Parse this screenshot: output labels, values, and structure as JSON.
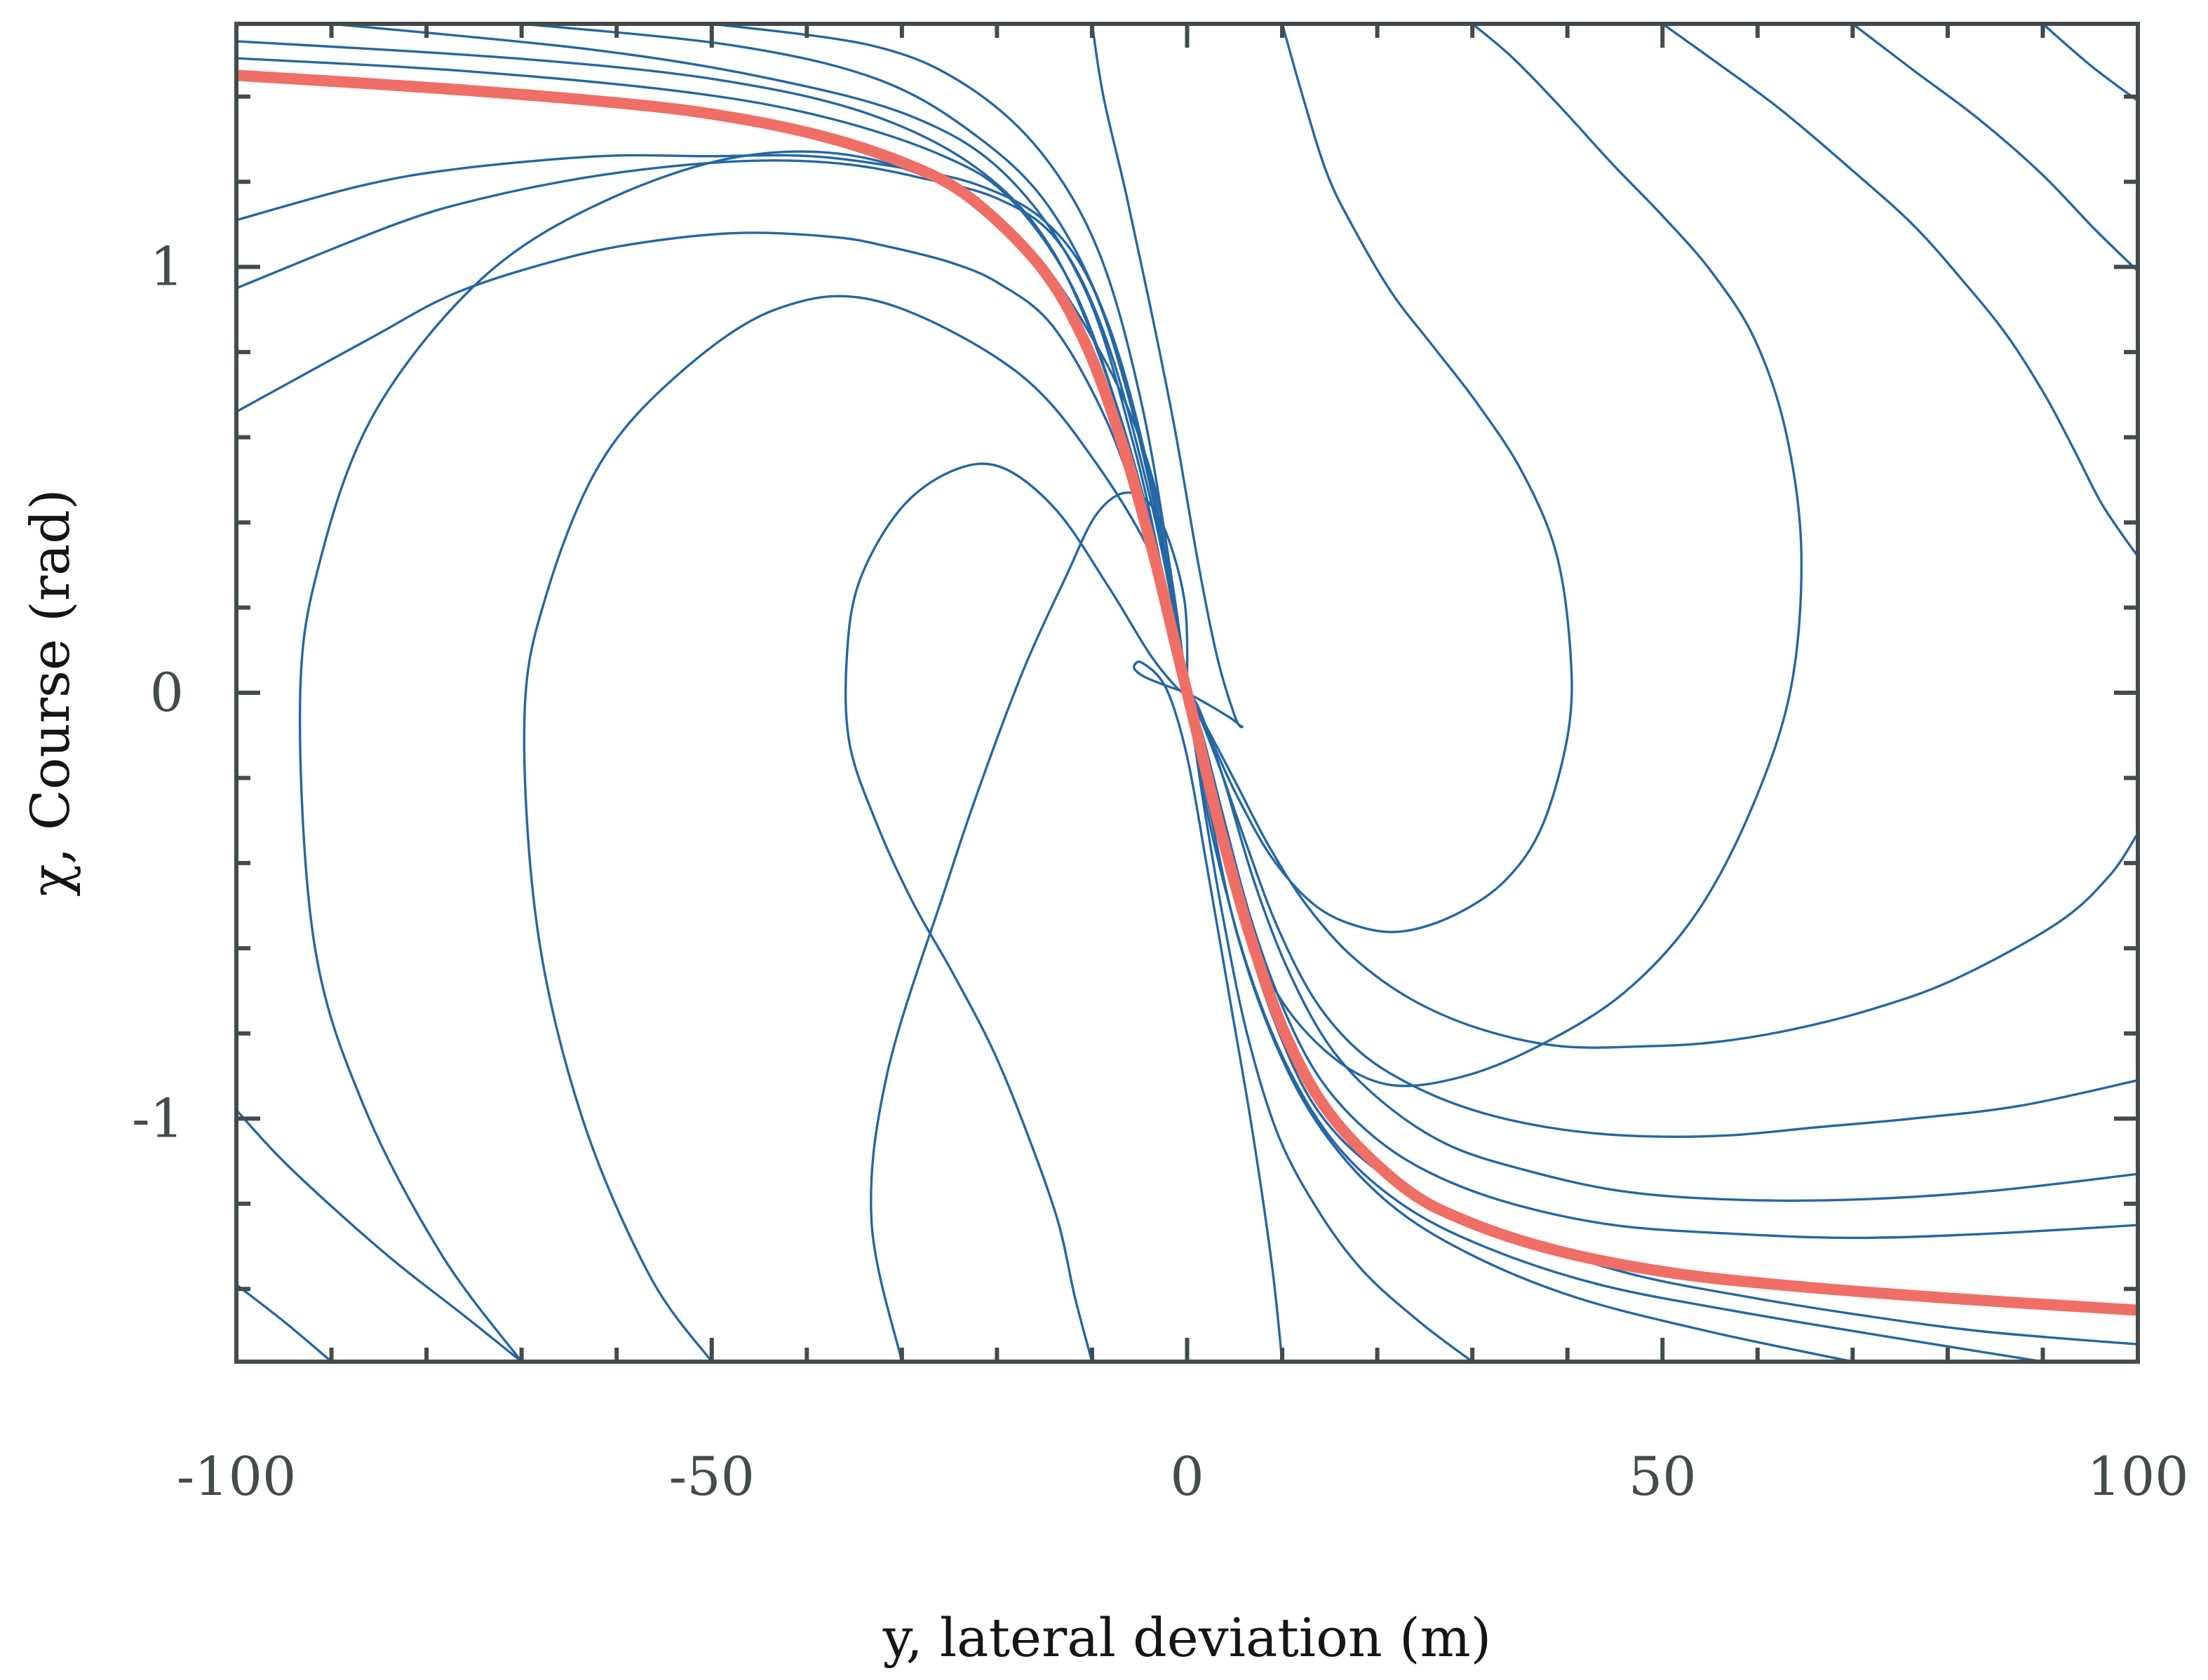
{
  "chart_data": {
    "type": "line",
    "title": "",
    "xlabel": "y, lateral deviation (m)",
    "ylabel": "χ, Course (rad)",
    "xlim": [
      -100,
      100
    ],
    "ylim": [
      -1.5708,
      1.5708
    ],
    "x_ticks": [
      -100,
      -50,
      0,
      50,
      100
    ],
    "x_tick_labels": [
      "-100",
      "-50",
      "0",
      "50",
      "100"
    ],
    "y_ticks": [
      -1,
      0,
      1
    ],
    "y_tick_labels": [
      "-1",
      "0",
      "1"
    ],
    "grid": false,
    "legend": "none",
    "box": true,
    "colors": {
      "trajectories": "#2467a4",
      "sliding_surface": "#ef6f66",
      "axes": "#444b4c"
    },
    "series": [
      {
        "role": "trajectory",
        "x": [
          -30,
          -33.2,
          -31.5,
          -25.3,
          -21.5,
          -17.1,
          -12.8,
          -9.5,
          -6.1,
          -2.9,
          -0.3,
          0
        ],
        "y": [
          -1.5708,
          -1.24,
          -0.89,
          -0.45,
          -0.2,
          0.06,
          0.27,
          0.42,
          0.47,
          0.41,
          0.22,
          0
        ]
      },
      {
        "role": "trajectory",
        "x": [
          -50,
          -56.5,
          -63.6,
          -68.3,
          -69.7,
          -67.4,
          -61.7,
          -53.4,
          -43.3,
          -32.6,
          -18.3,
          -9.6,
          -2.7,
          0
        ],
        "y": [
          -1.5708,
          -1.37,
          -1.0,
          -0.56,
          -0.06,
          0.23,
          0.54,
          0.75,
          0.9,
          0.92,
          0.76,
          0.54,
          0.27,
          0
        ]
      },
      {
        "role": "trajectory",
        "x": [
          -70,
          -78.4,
          -86.6,
          -91.8,
          -93.3,
          -91.2,
          -85.4,
          -74.3,
          -61.7,
          -46.8,
          -32.7,
          -19.6,
          -10.4,
          -3.6,
          0
        ],
        "y": [
          -1.5708,
          -1.32,
          -0.97,
          -0.59,
          -0.02,
          0.31,
          0.66,
          0.97,
          1.15,
          1.26,
          1.25,
          1.11,
          0.85,
          0.5,
          0
        ]
      },
      {
        "role": "trajectory",
        "x": [
          -100,
          -86.1,
          -76.8,
          -65.5,
          -56.4,
          -46.7,
          -37.1,
          -31.9,
          -24.8,
          -19.7,
          -14.1,
          -8.5,
          -4.5,
          -1.2,
          0
        ],
        "y": [
          0.66,
          0.83,
          0.94,
          1.02,
          1.06,
          1.08,
          1.07,
          1.05,
          1.01,
          0.96,
          0.86,
          0.64,
          0.39,
          0.14,
          0
        ]
      },
      {
        "role": "trajectory",
        "x": [
          -100,
          -83.3,
          -74.3,
          -63.2,
          -52.5,
          -43.3,
          -35.4,
          -28.2,
          -19.9,
          -13.6,
          -8.5,
          -3.7,
          -0.3,
          0
        ],
        "y": [
          0.95,
          1.1,
          1.16,
          1.21,
          1.24,
          1.25,
          1.24,
          1.21,
          1.16,
          1.06,
          0.83,
          0.44,
          0.06,
          0
        ]
      },
      {
        "role": "trajectory",
        "x": [
          -100,
          -87,
          -76.8,
          -61.8,
          -50.7,
          -39.5,
          -29.3,
          -21.7,
          -15.1,
          -10.1,
          -6.1,
          -2.7,
          -0.6,
          0
        ],
        "y": [
          1.11,
          1.19,
          1.23,
          1.26,
          1.26,
          1.26,
          1.23,
          1.19,
          1.11,
          0.96,
          0.69,
          0.36,
          0.09,
          0
        ]
      },
      {
        "role": "trajectory",
        "x": [
          -100,
          -76,
          -52.5,
          -37.8,
          -25.6,
          -18.6,
          -12,
          -7.2,
          -3.2,
          -1,
          0
        ],
        "y": [
          1.49,
          1.46,
          1.41,
          1.35,
          1.26,
          1.16,
          0.95,
          0.66,
          0.34,
          0.11,
          0
        ]
      },
      {
        "role": "trajectory",
        "x": [
          -100,
          -70.8,
          -49.5,
          -33.6,
          -22,
          -14.2,
          -8.4,
          -3.9,
          -1.2,
          0
        ],
        "y": [
          1.53,
          1.49,
          1.44,
          1.36,
          1.23,
          1.04,
          0.74,
          0.39,
          0.1,
          0
        ]
      },
      {
        "role": "trajectory",
        "x": [
          -90,
          -62.5,
          -43.4,
          -28.6,
          -18.8,
          -10.8,
          -5.6,
          -2.2,
          0
        ],
        "y": [
          1.5708,
          1.51,
          1.44,
          1.35,
          1.21,
          0.95,
          0.58,
          0.24,
          0
        ]
      },
      {
        "role": "trajectory",
        "x": [
          -70,
          -47.7,
          -32.5,
          -22.3,
          -14.5,
          -8.2,
          -3.7,
          -0.9,
          0
        ],
        "y": [
          1.5708,
          1.52,
          1.44,
          1.31,
          1.14,
          0.86,
          0.49,
          0.14,
          0
        ]
      },
      {
        "role": "trajectory",
        "x": [
          -50,
          -33.2,
          -23.5,
          -15.4,
          -9.2,
          -4.7,
          -1.5,
          0
        ],
        "y": [
          1.5708,
          1.52,
          1.43,
          1.27,
          1.03,
          0.67,
          0.25,
          0
        ]
      },
      {
        "role": "trajectory",
        "x": [
          -10,
          -8.8,
          -6.4,
          -3.9,
          -1.3,
          1.2,
          3.2,
          5.1,
          5.8,
          4.6,
          2.4,
          0
        ],
        "y": [
          1.5708,
          1.4,
          1.17,
          0.91,
          0.62,
          0.3,
          0.08,
          -0.06,
          -0.08,
          -0.06,
          -0.03,
          0
        ]
      },
      {
        "role": "trajectory",
        "x": [
          10,
          12.3,
          14.7,
          17.3,
          21.5,
          26,
          30.5,
          35.2,
          38.8,
          40.3,
          40.1,
          37.4,
          33.5,
          28.3,
          22.8,
          18.2,
          13.5,
          9,
          5.2,
          2.5,
          0
        ],
        "y": [
          1.5708,
          1.39,
          1.22,
          1.1,
          0.94,
          0.81,
          0.68,
          0.52,
          0.33,
          0.1,
          -0.09,
          -0.31,
          -0.44,
          -0.52,
          -0.56,
          -0.55,
          -0.5,
          -0.39,
          -0.24,
          -0.11,
          0
        ]
      },
      {
        "role": "trajectory",
        "x": [
          30,
          34.3,
          39.5,
          44.8,
          50,
          55.1,
          59.7,
          63,
          64.6,
          63.5,
          59.4,
          53.5,
          46.2,
          37.8,
          29.2,
          21.1,
          14.5,
          8.8,
          4.6,
          1.7,
          0
        ],
        "y": [
          1.5708,
          1.49,
          1.37,
          1.24,
          1.12,
          0.99,
          0.83,
          0.61,
          0.33,
          0.01,
          -0.27,
          -0.52,
          -0.7,
          -0.82,
          -0.9,
          -0.92,
          -0.84,
          -0.68,
          -0.43,
          -0.18,
          0
        ]
      },
      {
        "role": "trajectory",
        "x": [
          50,
          55.7,
          62.4,
          69.8,
          76.3,
          81.5,
          86.2,
          90.2,
          93.3,
          96.3,
          100
        ],
        "y": [
          1.5708,
          1.48,
          1.37,
          1.23,
          1.1,
          0.97,
          0.84,
          0.7,
          0.57,
          0.44,
          0.32
        ]
      },
      {
        "role": "trajectory",
        "x": [
          70,
          76.5,
          83.1,
          89.8,
          95.4,
          100
        ],
        "y": [
          1.5708,
          1.46,
          1.35,
          1.22,
          1.09,
          0.99
        ]
      },
      {
        "role": "trajectory",
        "x": [
          90,
          95.2,
          100
        ],
        "y": [
          1.5708,
          1.47,
          1.39
        ]
      },
      {
        "role": "trajectory",
        "x": [
          100,
          97,
          91.6,
          81,
          72.5,
          63.8,
          55.7,
          48.5,
          39.3,
          30.9,
          23.6,
          17.4,
          12.6,
          8.6,
          5.1,
          1.8,
          0
        ],
        "y": [
          -0.33,
          -0.43,
          -0.54,
          -0.67,
          -0.74,
          -0.79,
          -0.82,
          -0.83,
          -0.83,
          -0.79,
          -0.72,
          -0.62,
          -0.5,
          -0.36,
          -0.21,
          -0.07,
          0
        ]
      },
      {
        "role": "trajectory",
        "x": [
          100,
          87.6,
          76.3,
          66.4,
          56.5,
          46.3,
          37.8,
          30.1,
          23.5,
          18,
          13.4,
          9.5,
          6.3,
          3.5,
          1.2,
          0
        ],
        "y": [
          -0.91,
          -0.97,
          -1.0,
          -1.02,
          -1.04,
          -1.04,
          -1.02,
          -0.98,
          -0.92,
          -0.84,
          -0.72,
          -0.55,
          -0.36,
          -0.18,
          -0.05,
          0
        ]
      },
      {
        "role": "trajectory",
        "x": [
          100,
          84.5,
          70.4,
          57.1,
          45.6,
          35.4,
          27.3,
          20.5,
          15,
          10.6,
          7,
          3.8,
          1.3,
          0
        ],
        "y": [
          -1.13,
          -1.17,
          -1.19,
          -1.19,
          -1.17,
          -1.12,
          -1.06,
          -0.96,
          -0.83,
          -0.65,
          -0.44,
          -0.2,
          -0.04,
          0
        ]
      },
      {
        "role": "trajectory",
        "x": [
          100,
          84.5,
          70.4,
          57.1,
          44.9,
          34.2,
          25.8,
          19.5,
          14.1,
          10.1,
          6.7,
          3.8,
          1.5,
          0
        ],
        "y": [
          -1.25,
          -1.27,
          -1.28,
          -1.27,
          -1.25,
          -1.2,
          -1.13,
          -1.04,
          -0.91,
          -0.74,
          -0.53,
          -0.29,
          -0.09,
          0
        ]
      },
      {
        "role": "trajectory",
        "x": [
          100,
          83.8,
          70.4,
          59.3,
          47.6,
          37.1,
          27.3,
          19.3,
          13.4,
          9,
          5.3,
          2.5,
          0.6,
          0
        ],
        "y": [
          -1.53,
          -1.5,
          -1.46,
          -1.42,
          -1.37,
          -1.3,
          -1.22,
          -1.11,
          -0.97,
          -0.76,
          -0.5,
          -0.24,
          -0.06,
          0
        ]
      },
      {
        "role": "trajectory",
        "x": [
          90,
          73.1,
          57.1,
          43.4,
          32.3,
          23.2,
          16,
          10.6,
          6.3,
          2.8,
          0.8,
          0
        ],
        "y": [
          -1.5708,
          -1.51,
          -1.45,
          -1.39,
          -1.31,
          -1.21,
          -1.07,
          -0.88,
          -0.64,
          -0.35,
          -0.12,
          0
        ]
      },
      {
        "role": "trajectory",
        "x": [
          70,
          54.9,
          40.9,
          29.9,
          21.3,
          14.3,
          9.4,
          5.3,
          2.5,
          0.6,
          0
        ],
        "y": [
          -1.5708,
          -1.5,
          -1.42,
          -1.32,
          -1.2,
          -1.03,
          -0.83,
          -0.57,
          -0.29,
          -0.08,
          0
        ]
      },
      {
        "role": "trajectory",
        "x": [
          30,
          24.6,
          18.6,
          13.9,
          9.6,
          6.3,
          3.8,
          1.8,
          0.5,
          0
        ],
        "y": [
          -1.5708,
          -1.48,
          -1.36,
          -1.22,
          -1.04,
          -0.8,
          -0.53,
          -0.27,
          -0.07,
          0
        ]
      },
      {
        "role": "trajectory",
        "x": [
          10,
          8.9,
          6.8,
          4.5,
          2.1,
          0,
          -2.2,
          -4.7,
          -5.6,
          -4.7,
          -2.6,
          0
        ],
        "y": [
          -1.5708,
          -1.34,
          -1.02,
          -0.72,
          -0.41,
          -0.15,
          0.01,
          0.07,
          0.06,
          0.04,
          0.02,
          0
        ]
      },
      {
        "role": "trajectory",
        "x": [
          -10,
          -11.8,
          -13.6,
          -16.9,
          -20.4,
          -24.6,
          -28.9,
          -32.6,
          -35.5,
          -35.8,
          -34.5,
          -30.2,
          -24.8,
          -19.6,
          -13.8,
          -8.3,
          -3.9,
          -1,
          0
        ],
        "y": [
          -1.5708,
          -1.42,
          -1.24,
          -1.03,
          -0.84,
          -0.66,
          -0.49,
          -0.31,
          -0.12,
          0.08,
          0.26,
          0.43,
          0.52,
          0.53,
          0.43,
          0.25,
          0.09,
          0.01,
          0
        ]
      },
      {
        "role": "trajectory",
        "x": [
          -90,
          -94.8,
          -100
        ],
        "y": [
          -1.5708,
          -1.48,
          -1.39
        ]
      },
      {
        "role": "trajectory",
        "x": [
          -70,
          -76.2,
          -83.1,
          -89.8,
          -95.5,
          -100
        ],
        "y": [
          -1.5708,
          -1.46,
          -1.34,
          -1.21,
          -1.09,
          -0.98
        ]
      },
      {
        "role": "sliding_surface",
        "x": [
          -100,
          -79,
          -62.2,
          -50.3,
          -38.9,
          -29.3,
          -22.7,
          -15.4,
          -10.7,
          -6.9,
          -3.6,
          -1.2,
          0,
          1.2,
          3.6,
          6.9,
          10.7,
          15.4,
          22.7,
          29.3,
          38.9,
          50.3,
          62.2,
          79,
          100
        ],
        "y": [
          1.45,
          1.42,
          1.39,
          1.36,
          1.31,
          1.24,
          1.16,
          1.0,
          0.82,
          0.59,
          0.33,
          0.11,
          0,
          -0.11,
          -0.33,
          -0.59,
          -0.82,
          -1.0,
          -1.16,
          -1.24,
          -1.31,
          -1.36,
          -1.39,
          -1.42,
          -1.45
        ]
      }
    ]
  }
}
